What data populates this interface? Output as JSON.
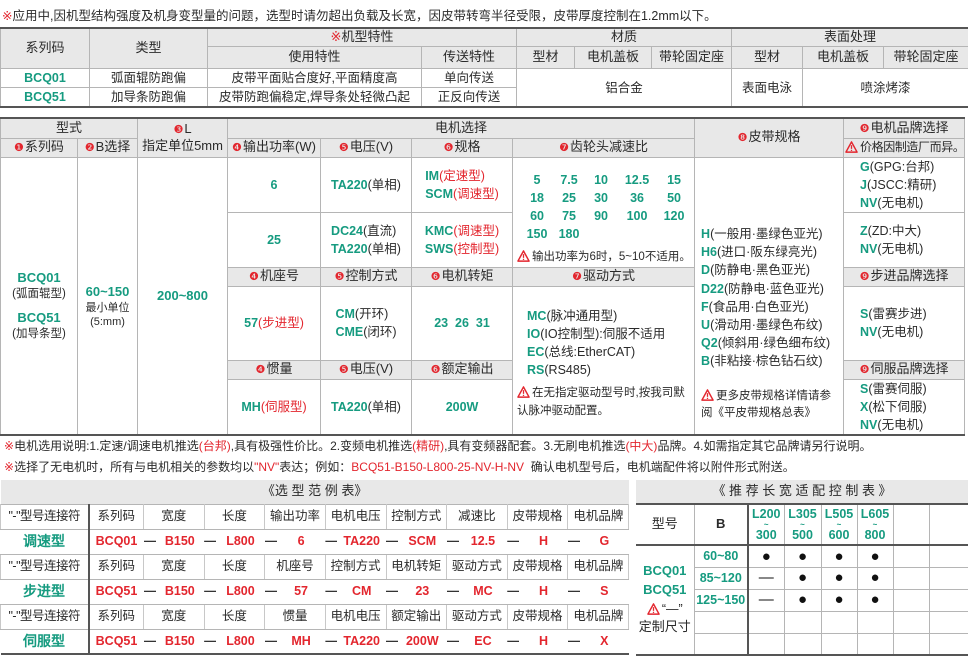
{
  "colors": {
    "teal": "#169b80",
    "red": "#e3262e",
    "header_bg": "#e8e8e8"
  },
  "top_note": {
    "mark": "※",
    "text": "应用中,因机型结构强度及机身变型量的问题，选型时请勿超出负载及长宽，因皮带转弯半径受限，皮带厚度控制在1.2mm以下。"
  },
  "spec_table": {
    "headers": {
      "series": "系列码",
      "type": "类型",
      "features_mark": "※",
      "features": "机型特性",
      "usage": "使用特性",
      "transfer": "传送特性",
      "material": "材质",
      "surface": "表面处理",
      "profile": "型材",
      "motor_cover": "电机盖板",
      "pulley_mount": "带轮固定座"
    },
    "rows": [
      {
        "series": "BCQ01",
        "type": "弧面辊防跑偏",
        "usage": "皮带平面贴合度好,平面精度高",
        "transfer": "单向传送"
      },
      {
        "series": "BCQ51",
        "type": "加导条防跑偏",
        "usage": "皮带防跑偏稳定,焊导条处轻微凸起",
        "transfer": "正反向传送"
      }
    ],
    "material_value": "铝合金",
    "surface_profile": "表面电泳",
    "surface_other": "喷涂烤漆"
  },
  "selection": {
    "headers": {
      "model": "型式",
      "series": {
        "n": "❶",
        "t": "系列码"
      },
      "b": {
        "n": "❷",
        "t": "B选择"
      },
      "l": {
        "n": "❸",
        "t": "L"
      },
      "l_sub": "指定单位5mm",
      "motor": "电机选择",
      "power": {
        "n": "❹",
        "t": "输出功率(W)"
      },
      "voltage": {
        "n": "❺",
        "t": "电压(V)"
      },
      "spec": {
        "n": "❻",
        "t": "规格"
      },
      "ratio": {
        "n": "❼",
        "t": "齿轮头减速比"
      },
      "belt": {
        "n": "❽",
        "t": "皮带规格"
      },
      "brand": {
        "n": "❾",
        "t": "电机品牌选择"
      },
      "brand_note": "价格因制造厂而异。"
    },
    "series_items": [
      {
        "code": "BCQ01",
        "desc": "(弧面辊型)"
      },
      {
        "code": "BCQ51",
        "desc": "(加导条型)"
      }
    ],
    "b_range": "60~150",
    "b_unit": "最小单位",
    "b_unit2": "(5:mm)",
    "l_range": "200~800",
    "geared": [
      {
        "power": "6",
        "voltages": [
          {
            "code": "TA220",
            "desc": "(单相)"
          }
        ],
        "specs": [
          {
            "code": "IM",
            "desc": "(定速型)"
          },
          {
            "code": "SCM",
            "desc": "(调速型)"
          }
        ],
        "brands": [
          {
            "code": "G",
            "desc": "(GPG:台邦)"
          },
          {
            "code": "J",
            "desc": "(JSCC:精研)"
          },
          {
            "code": "NV",
            "desc": "(无电机)"
          }
        ]
      },
      {
        "power": "25",
        "voltages": [
          {
            "code": "DC24",
            "desc": "(直流)"
          },
          {
            "code": "TA220",
            "desc": "(单相)"
          }
        ],
        "specs": [
          {
            "code": "KMC",
            "desc": "(调速型)"
          },
          {
            "code": "SWS",
            "desc": "(控制型)"
          }
        ],
        "brands": [
          {
            "code": "Z",
            "desc": "(ZD:中大)"
          },
          {
            "code": "NV",
            "desc": "(无电机)"
          }
        ]
      }
    ],
    "ratios": [
      "5",
      "7.5",
      "10",
      "12.5",
      "15",
      "18",
      "25",
      "30",
      "36",
      "50",
      "60",
      "75",
      "90",
      "100",
      "120",
      "150",
      "180"
    ],
    "ratio_note": "输出功率为6时，5~10不适用。",
    "stepper": {
      "frame_h": {
        "n": "❹",
        "t": "机座号"
      },
      "control_h": {
        "n": "❺",
        "t": "控制方式"
      },
      "torque_h": {
        "n": "❻",
        "t": "电机转矩"
      },
      "frame": {
        "code": "57",
        "desc": "(步进型)"
      },
      "controls": [
        {
          "code": "CM",
          "desc": "(开环)"
        },
        {
          "code": "CME",
          "desc": "(闭环)"
        }
      ],
      "torque": "23  26  31",
      "brand_h": {
        "n": "❾",
        "t": "步进品牌选择"
      },
      "brands": [
        {
          "code": "S",
          "desc": "(雷赛步进)"
        },
        {
          "code": "NV",
          "desc": "(无电机)"
        }
      ]
    },
    "drive_h": {
      "n": "❼",
      "t": "驱动方式"
    },
    "drives": [
      {
        "code": "MC",
        "desc": "(脉冲通用型)"
      },
      {
        "code": "IO",
        "desc": "(IO控制型):伺服不适用"
      },
      {
        "code": "EC",
        "desc": "(总线:EtherCAT)"
      },
      {
        "code": "RS",
        "desc": "(RS485)"
      }
    ],
    "drive_note": "在无指定驱动型号时,按我司默认脉冲驱动配置。",
    "servo": {
      "inertia_h": {
        "n": "❹",
        "t": "惯量"
      },
      "voltage_h": {
        "n": "❺",
        "t": "电压(V)"
      },
      "output_h": {
        "n": "❻",
        "t": "额定输出"
      },
      "inertia": {
        "code": "MH",
        "desc": "(伺服型)"
      },
      "voltage": {
        "code": "TA220",
        "desc": "(单相)"
      },
      "output": "200W",
      "brand_h": {
        "n": "❾",
        "t": "伺服品牌选择"
      },
      "brands": [
        {
          "code": "S",
          "desc": "(雷赛伺服)"
        },
        {
          "code": "X",
          "desc": "(松下伺服)"
        },
        {
          "code": "NV",
          "desc": "(无电机)"
        }
      ]
    },
    "belts": [
      {
        "code": "H",
        "desc": "(一般用·墨绿色亚光)"
      },
      {
        "code": "H6",
        "desc": "(进口·阪东绿亮光)"
      },
      {
        "code": "D",
        "desc": "(防静电·黑色亚光)"
      },
      {
        "code": "D22",
        "desc": "(防静电·蓝色亚光)"
      },
      {
        "code": "F",
        "desc": "(食品用·白色亚光)"
      },
      {
        "code": "U",
        "desc": "(滑动用·墨绿色布纹)"
      },
      {
        "code": "Q2",
        "desc": "(倾斜用·绿色细布纹)"
      },
      {
        "code": "B",
        "desc": "(非粘接·棕色钻石纹)"
      }
    ],
    "belt_note": "更多皮带规格详情请参阅《平皮带规格总表》"
  },
  "notes": {
    "line1": [
      {
        "text": "※",
        "red": true
      },
      {
        "text": "电机选用说明:1.定速/调速电机推选",
        "red": false
      },
      {
        "text": "(台邦)",
        "red": true
      },
      {
        "text": ",具有极强性价比。2.变频电机推选",
        "red": false
      },
      {
        "text": "(精研)",
        "red": true
      },
      {
        "text": ",具有变频器配套。3.无刷电机推选",
        "red": false
      },
      {
        "text": "(中大)",
        "red": true
      },
      {
        "text": "品牌。4.如需指定其它品牌请另行说明。",
        "red": false
      }
    ],
    "line2": [
      {
        "text": "※",
        "red": true
      },
      {
        "text": "选择了无电机时，所有与电机相关的参数均以",
        "red": false
      },
      {
        "text": "\"NV\"",
        "red": true
      },
      {
        "text": "表达；例如：",
        "red": false
      },
      {
        "text": "BCQ51-B150-L800-25-NV-H-NV",
        "red": true
      },
      {
        "text": "  确认电机型号后，电机端配件将以附件形式附送。",
        "red": false
      }
    ]
  },
  "example": {
    "title": "《选 型 范 例 表》",
    "connector": "\"-\"型号连接符",
    "separator": "—",
    "groups": [
      {
        "label": "调速型",
        "headers": [
          "系列码",
          "宽度",
          "长度",
          "输出功率",
          "电机电压",
          "控制方式",
          "减速比",
          "皮带规格",
          "电机品牌"
        ],
        "values": [
          "BCQ01",
          "B150",
          "L800",
          "6",
          "TA220",
          "SCM",
          "12.5",
          "H",
          "G"
        ]
      },
      {
        "label": "步进型",
        "headers": [
          "系列码",
          "宽度",
          "长度",
          "机座号",
          "控制方式",
          "电机转矩",
          "驱动方式",
          "皮带规格",
          "电机品牌"
        ],
        "values": [
          "BCQ51",
          "B150",
          "L800",
          "57",
          "CM",
          "23",
          "MC",
          "H",
          "S"
        ]
      },
      {
        "label": "伺服型",
        "headers": [
          "系列码",
          "宽度",
          "长度",
          "惯量",
          "电机电压",
          "额定输出",
          "驱动方式",
          "皮带规格",
          "电机品牌"
        ],
        "values": [
          "BCQ51",
          "B150",
          "L800",
          "MH",
          "TA220",
          "200W",
          "EC",
          "H",
          "X"
        ]
      }
    ]
  },
  "recommend": {
    "title": "《 推 荐 长 宽 适 配 控 制 表 》",
    "model_h": "型号",
    "b_h": "B",
    "lengths": [
      {
        "from": "L200",
        "tilde": "~",
        "to": "300"
      },
      {
        "from": "L305",
        "tilde": "~",
        "to": "500"
      },
      {
        "from": "L505",
        "tilde": "~",
        "to": "600"
      },
      {
        "from": "L605",
        "tilde": "~",
        "to": "800"
      }
    ],
    "models": [
      "BCQ01",
      "BCQ51"
    ],
    "note_mark": "“—”",
    "note": "定制尺寸",
    "rows": [
      {
        "b": "60~80",
        "cells": [
          "●",
          "●",
          "●",
          "●"
        ]
      },
      {
        "b": "85~120",
        "cells": [
          "—",
          "●",
          "●",
          "●"
        ]
      },
      {
        "b": "125~150",
        "cells": [
          "—",
          "●",
          "●",
          "●"
        ]
      }
    ]
  }
}
